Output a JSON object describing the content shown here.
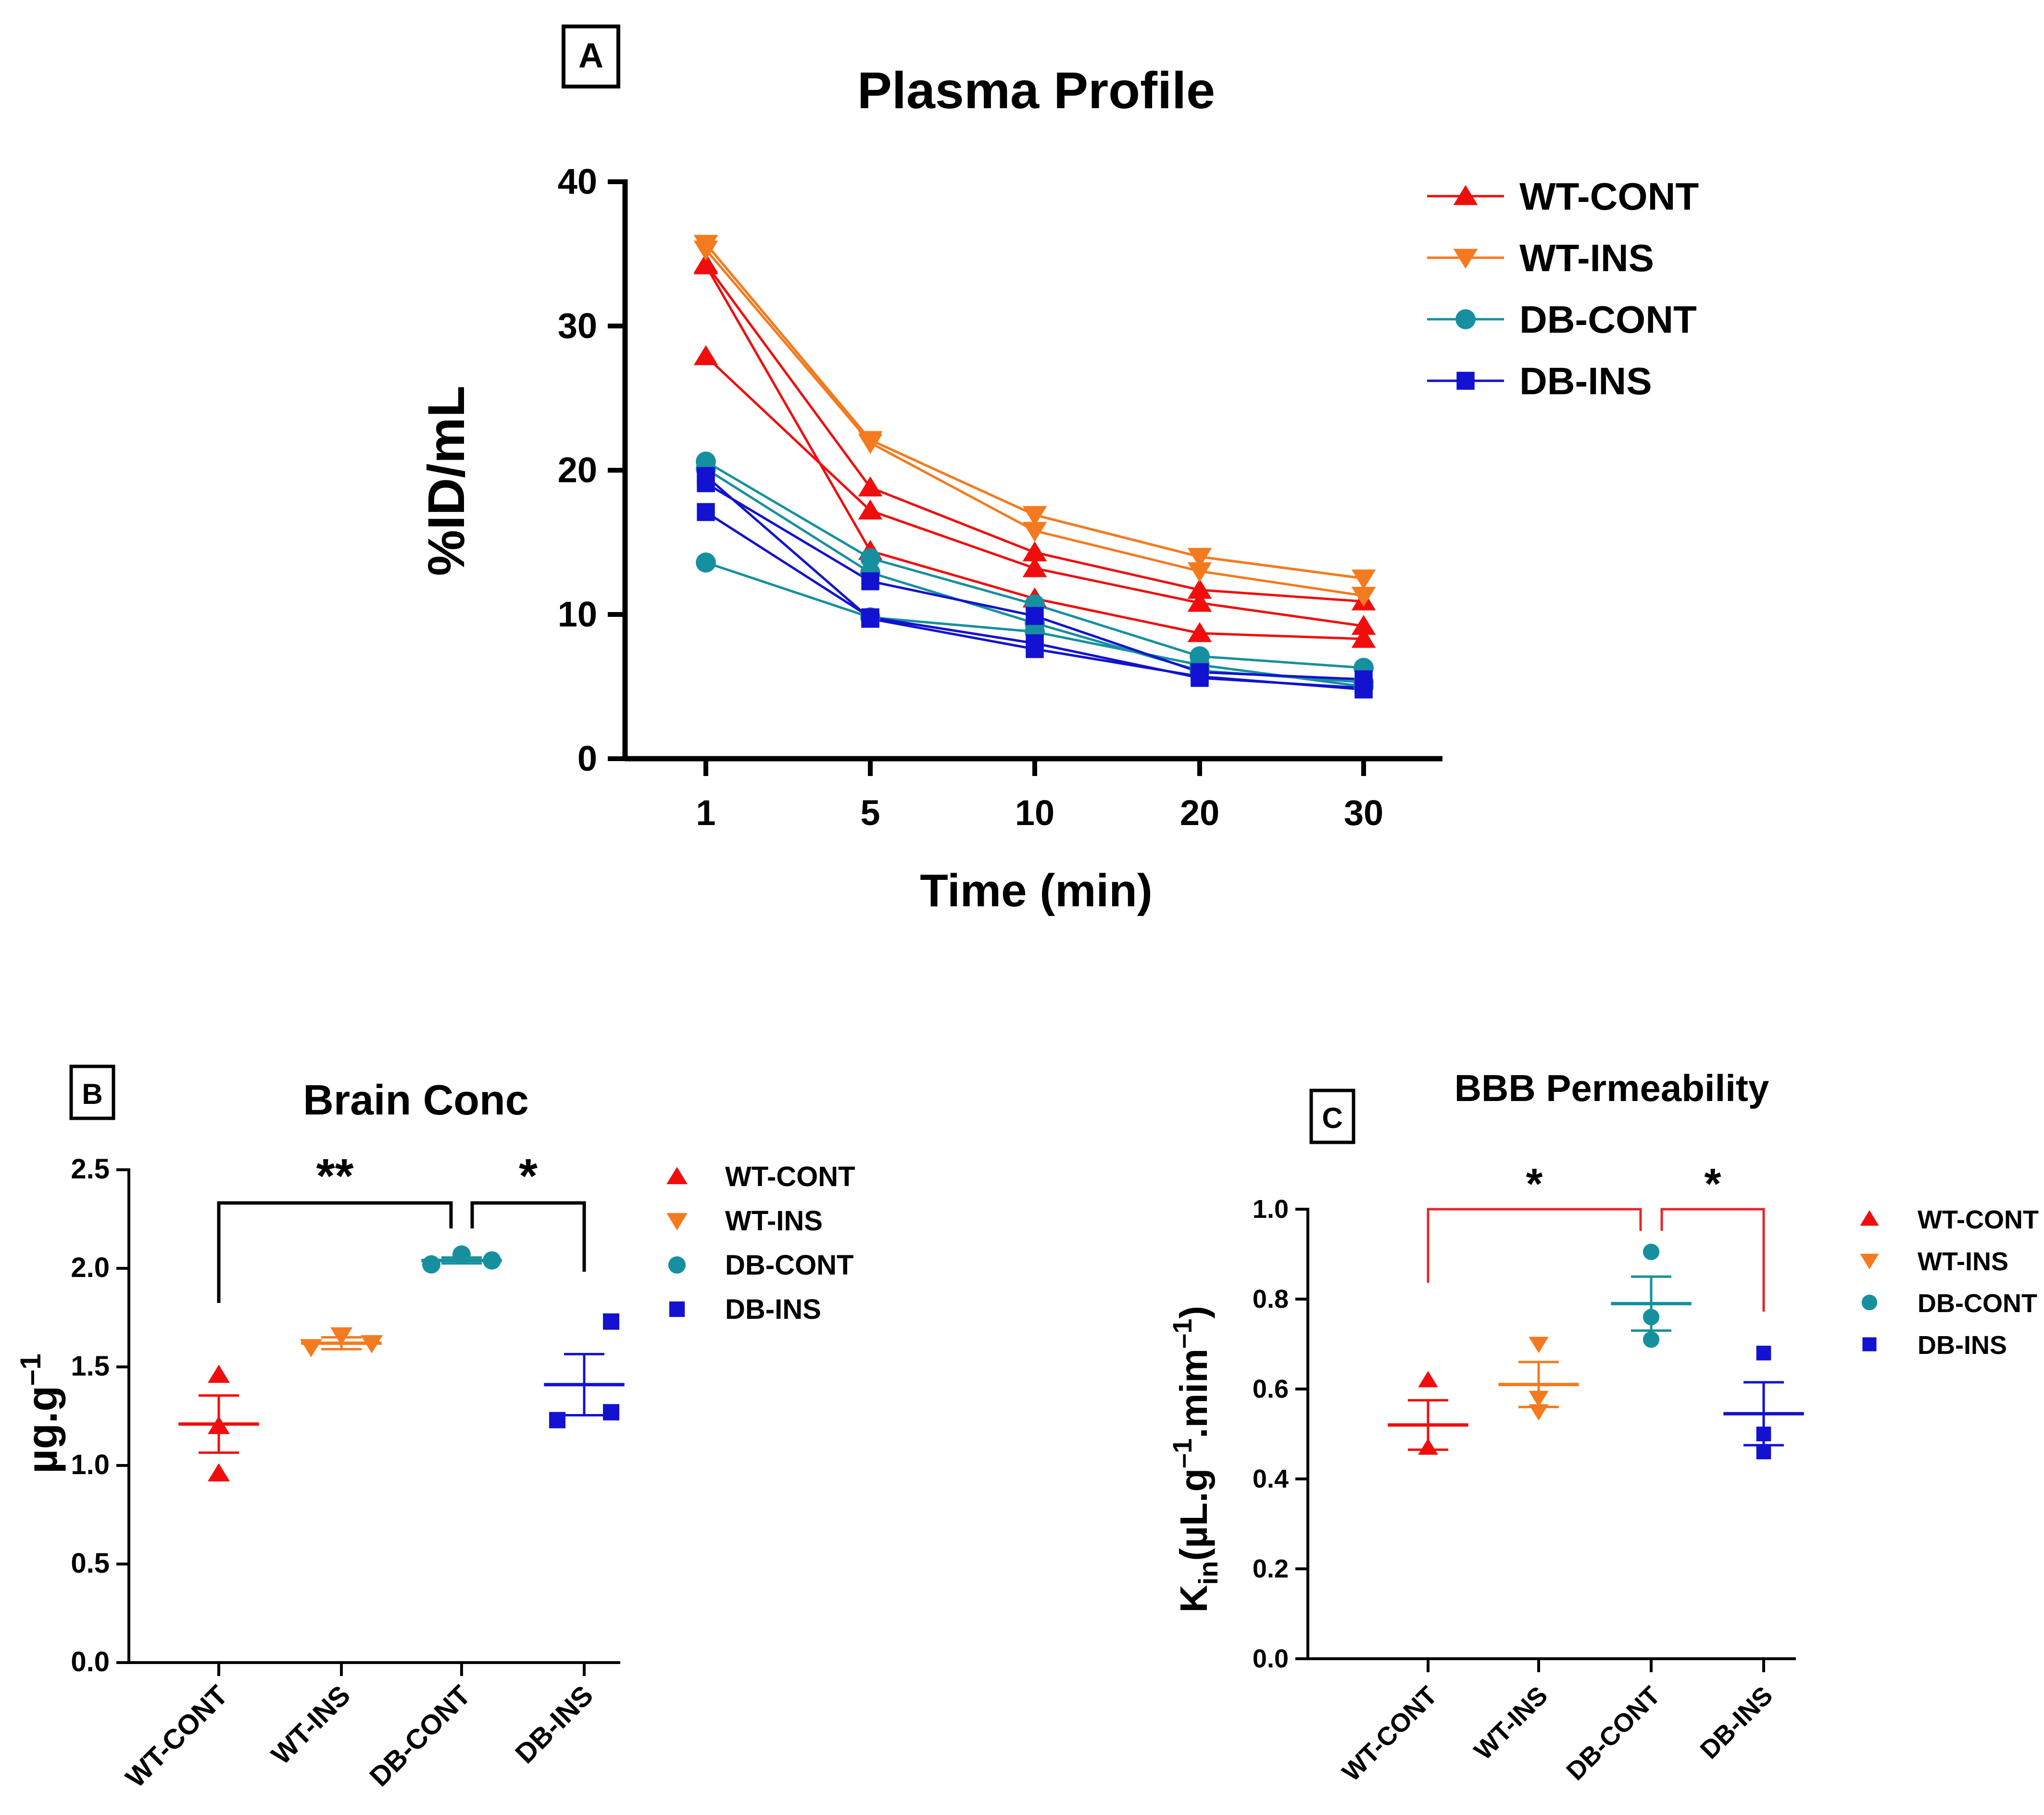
{
  "colors": {
    "WT-CONT": "#f20d0d",
    "WT-INS": "#f47a1f",
    "DB-CONT": "#16909f",
    "DB-INS": "#1212d0",
    "bracketB": "#000000",
    "bracketC": "#e3262c"
  },
  "markers": {
    "WT-CONT": "triangle-up",
    "WT-INS": "triangle-down",
    "DB-CONT": "circle",
    "DB-INS": "square"
  },
  "chart_data": [
    {
      "panel": "A",
      "type": "line",
      "title": "Plasma Profile",
      "xlabel": "Time (min)",
      "ylabel": "%ID/mL",
      "categories": [
        "1",
        "5",
        "10",
        "20",
        "30"
      ],
      "ylim": [
        0,
        40
      ],
      "yticks": [
        "0",
        "10",
        "20",
        "30",
        "40"
      ],
      "legend": [
        "WT-CONT",
        "WT-INS",
        "DB-CONT",
        "DB-INS"
      ],
      "series": [
        {
          "group": "WT-CONT",
          "values": [
            34.3,
            18.8,
            14.3,
            11.7,
            10.9
          ]
        },
        {
          "group": "WT-CONT",
          "values": [
            27.9,
            17.2,
            13.2,
            10.8,
            9.2
          ]
        },
        {
          "group": "WT-CONT",
          "values": [
            34.2,
            14.4,
            11.1,
            8.7,
            8.3
          ]
        },
        {
          "group": "WT-INS",
          "values": [
            35.7,
            22.1,
            16.9,
            14.0,
            12.5
          ]
        },
        {
          "group": "WT-INS",
          "values": [
            35.3,
            21.9,
            15.8,
            13.0,
            11.3
          ]
        },
        {
          "group": "WT-INS",
          "values": [
            35.7,
            22.1,
            16.9,
            14.0,
            12.5
          ]
        },
        {
          "group": "DB-CONT",
          "values": [
            20.6,
            13.9,
            10.7,
            7.1,
            6.3
          ]
        },
        {
          "group": "DB-CONT",
          "values": [
            20.1,
            12.9,
            9.4,
            6.1,
            5.3
          ]
        },
        {
          "group": "DB-CONT",
          "values": [
            13.6,
            9.8,
            8.8,
            6.5,
            5.0
          ]
        },
        {
          "group": "DB-INS",
          "values": [
            19.1,
            12.3,
            9.9,
            6.0,
            5.5
          ]
        },
        {
          "group": "DB-INS",
          "values": [
            17.1,
            9.8,
            8.0,
            5.6,
            4.9
          ]
        },
        {
          "group": "DB-INS",
          "values": [
            19.6,
            9.7,
            7.6,
            5.7,
            4.8
          ]
        }
      ]
    },
    {
      "panel": "B",
      "type": "scatter",
      "title": "Brain Conc",
      "xlabel": "",
      "ylabel": "µg.g",
      "ylabel_sup": "–1",
      "categories": [
        "WT-CONT",
        "WT-INS",
        "DB-CONT",
        "DB-INS"
      ],
      "ylim": [
        0,
        2.5
      ],
      "yticks": [
        "0.0",
        "0.5",
        "1.0",
        "1.5",
        "2.0",
        "2.5"
      ],
      "legend": [
        "WT-CONT",
        "WT-INS",
        "DB-CONT",
        "DB-INS"
      ],
      "points": [
        [
          1.46,
          1.2,
          0.96
        ],
        [
          1.66,
          1.6,
          1.62
        ],
        [
          2.02,
          2.07,
          2.04
        ],
        [
          1.73,
          1.27,
          1.23
        ]
      ],
      "points_offset": [
        [
          0,
          0,
          0
        ],
        [
          0,
          -0.45,
          0.45
        ],
        [
          -0.45,
          0,
          0.45
        ],
        [
          0.4,
          0.4,
          -0.4
        ]
      ],
      "mean": [
        1.21,
        1.62,
        2.04,
        1.41
      ],
      "sem": [
        0.145,
        0.03,
        0.015,
        0.155
      ],
      "significance": [
        {
          "from": 0,
          "to": 2,
          "label": "**"
        },
        {
          "from": 2,
          "to": 3,
          "label": "*"
        }
      ]
    },
    {
      "panel": "C",
      "type": "scatter",
      "title": "BBB Permeability",
      "xlabel": "",
      "ylabel_main": "K",
      "ylabel_sub": "in",
      "ylabel_rest": "(µL.g",
      "ylabel_sup1": "–1",
      "ylabel_mid": ".mim",
      "ylabel_sup2": "–1",
      "ylabel_end": ")",
      "categories": [
        "WT-CONT",
        "WT-INS",
        "DB-CONT",
        "DB-INS"
      ],
      "ylim": [
        0,
        1.0
      ],
      "yticks": [
        "0.0",
        "0.2",
        "0.4",
        "0.6",
        "0.8",
        "1.0"
      ],
      "legend": [
        "WT-CONT",
        "WT-INS",
        "DB-CONT",
        "DB-INS"
      ],
      "points": [
        [
          0.62,
          0.47,
          0.47
        ],
        [
          0.7,
          0.58,
          0.55
        ],
        [
          0.905,
          0.76,
          0.71
        ],
        [
          0.68,
          0.5,
          0.46
        ]
      ],
      "points_offset": [
        [
          0,
          0,
          0
        ],
        [
          0,
          0,
          0
        ],
        [
          0,
          0,
          0
        ],
        [
          0,
          0,
          0
        ]
      ],
      "mean": [
        0.52,
        0.61,
        0.79,
        0.545
      ],
      "sem": [
        0.055,
        0.05,
        0.06,
        0.07
      ],
      "significance": [
        {
          "from": 0,
          "to": 2,
          "label": "*"
        },
        {
          "from": 2,
          "to": 3,
          "label": "*"
        }
      ]
    }
  ]
}
